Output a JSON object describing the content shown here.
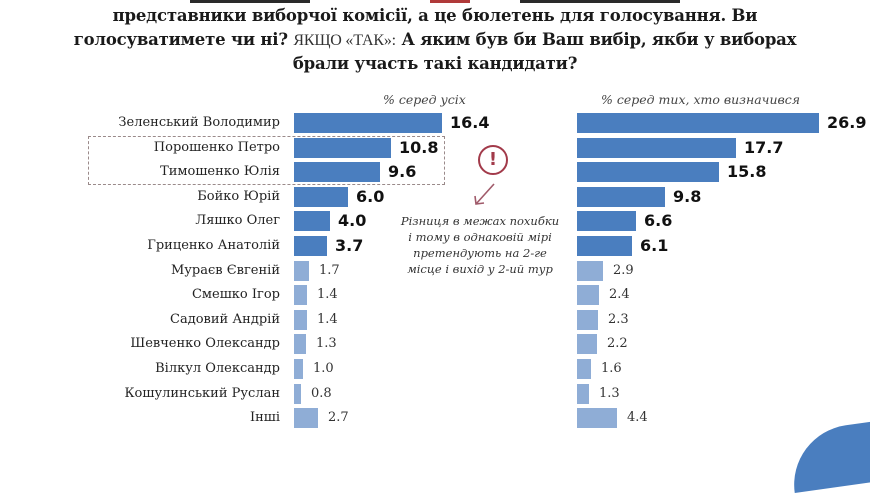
{
  "question": {
    "line2": "представники виборчої комісії, а це бюлетень для голосування. Ви",
    "line3_bold_a": "голосуватимете чи ні?",
    "line3_plain": "ЯКЩО «ТАК»:",
    "line3_bold_b": "А яким був би Ваш вибір, якби у виборах",
    "line4": "брали участь такі кандидати?"
  },
  "annotation": {
    "icon": "exclamation-circle-icon",
    "text_lines": [
      "Різниця в межах похибки",
      "і тому в однаковій мірі",
      "претендують на 2-ге",
      "місце і вихід у 2-ий тур"
    ]
  },
  "colors": {
    "bar_highlight": "#4a7ebf",
    "bar_regular": "#8fadd6",
    "warning": "#a23a4a"
  },
  "chart_data": [
    {
      "type": "bar",
      "orientation": "horizontal",
      "title": "% серед усіх",
      "categories": [
        "Зеленський Володимир",
        "Порошенко Петро",
        "Тимошенко Юлія",
        "Бойко Юрій",
        "Ляшко Олег",
        "Гриценко Анатолій",
        "Мураєв Євгеній",
        "Смешко Ігор",
        "Садовий Андрій",
        "Шевченко Олександр",
        "Вілкул Олександр",
        "Кошулинський Руслан",
        "Інші"
      ],
      "values": [
        16.4,
        10.8,
        9.6,
        6.0,
        4.0,
        3.7,
        1.7,
        1.4,
        1.4,
        1.3,
        1.0,
        0.8,
        2.7
      ],
      "value_labels": [
        "16.4",
        "10.8",
        "9.6",
        "6.0",
        "4.0",
        "3.7",
        "1.7",
        "1.4",
        "1.4",
        "1.3",
        "1.0",
        "0.8",
        "2.7"
      ],
      "highlighted_count": 6,
      "xlabel": "",
      "ylabel": "",
      "grid": false,
      "legend": "none"
    },
    {
      "type": "bar",
      "orientation": "horizontal",
      "title": "% серед тих, хто визначився",
      "categories": [
        "Зеленський Володимир",
        "Порошенко Петро",
        "Тимошенко Юлія",
        "Бойко Юрій",
        "Ляшко Олег",
        "Гриценко Анатолій",
        "Мураєв Євгеній",
        "Смешко Ігор",
        "Садовий Андрій",
        "Шевченко Олександр",
        "Вілкул Олександр",
        "Кошулинський Руслан",
        "Інші"
      ],
      "values": [
        26.9,
        17.7,
        15.8,
        9.8,
        6.6,
        6.1,
        2.9,
        2.4,
        2.3,
        2.2,
        1.6,
        1.3,
        4.4
      ],
      "value_labels": [
        "26.9",
        "17.7",
        "15.8",
        "9.8",
        "6.6",
        "6.1",
        "2.9",
        "2.4",
        "2.3",
        "2.2",
        "1.6",
        "1.3",
        "4.4"
      ],
      "highlighted_count": 6,
      "xlabel": "",
      "ylabel": "",
      "grid": false,
      "legend": "none"
    }
  ]
}
